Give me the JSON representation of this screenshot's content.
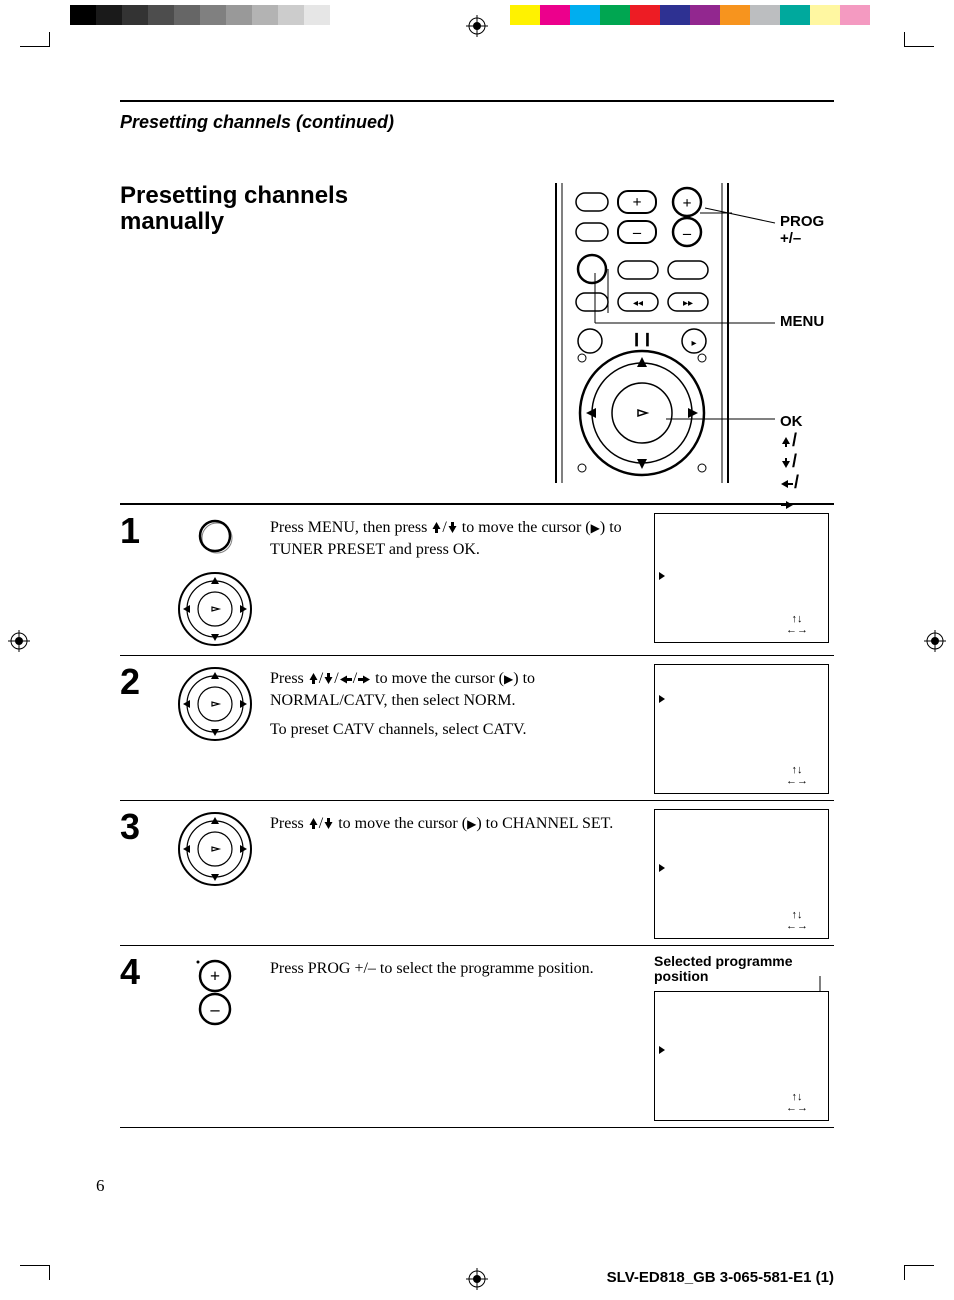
{
  "print": {
    "gray_swatches": [
      "#000000",
      "#1a1a1a",
      "#333333",
      "#4d4d4d",
      "#666666",
      "#808080",
      "#999999",
      "#b3b3b3",
      "#cccccc",
      "#e6e6e6",
      "#ffffff"
    ],
    "color_swatches": [
      "#fff200",
      "#ec008c",
      "#00aeef",
      "#00a651",
      "#ed1c24",
      "#2e3192",
      "#92278f",
      "#f7941e",
      "#bcbec0",
      "#00a99d",
      "#fff7a1",
      "#f49ac1"
    ]
  },
  "header": {
    "continued": "Presetting channels (continued)",
    "title_line1": "Presetting channels",
    "title_line2": "manually"
  },
  "remote_labels": {
    "prog": "PROG +/–",
    "menu": "MENU",
    "ok": "OK",
    "arrows": "↑/↓/←/→"
  },
  "steps": {
    "s1": {
      "num": "1",
      "text": "Press MENU, then press ↑/↓ to move the cursor (▶) to TUNER PRESET and press OK."
    },
    "s2": {
      "num": "2",
      "text_p1": "Press ↑/↓/←/→ to move the cursor (▶) to NORMAL/CATV, then select NORM.",
      "text_p2": "To preset CATV channels, select CATV."
    },
    "s3": {
      "num": "3",
      "text": "Press ↑/↓ to move the cursor (▶) to CHANNEL SET."
    },
    "s4": {
      "num": "4",
      "text": "Press PROG +/–  to select the programme position.",
      "screen_label": "Selected programme position"
    }
  },
  "footer": {
    "page_number": "6",
    "doc_id": "SLV-ED818_GB  3-065-581-E1 (1)"
  }
}
